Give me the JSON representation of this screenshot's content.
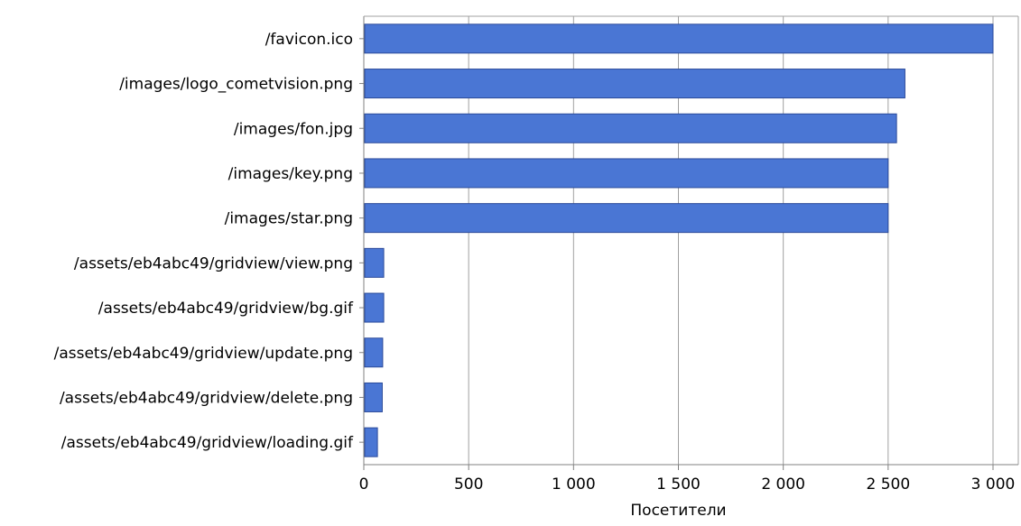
{
  "chart_data": {
    "type": "bar",
    "orientation": "horizontal",
    "categories": [
      "/favicon.ico",
      "/images/logo_cometvision.png",
      "/images/fon.jpg",
      "/images/key.png",
      "/images/star.png",
      "/assets/eb4abc49/gridview/view.png",
      "/assets/eb4abc49/gridview/bg.gif",
      "/assets/eb4abc49/gridview/update.png",
      "/assets/eb4abc49/gridview/delete.png",
      "/assets/eb4abc49/gridview/loading.gif"
    ],
    "values": [
      3000,
      2580,
      2540,
      2500,
      2500,
      95,
      95,
      90,
      88,
      65
    ],
    "xlabel": "Посетители",
    "ylabel": "",
    "xlim": [
      0,
      3000
    ],
    "xticks": [
      0,
      500,
      1000,
      1500,
      2000,
      2500,
      3000
    ],
    "xtick_labels": [
      "0",
      "500",
      "1 000",
      "1 500",
      "2 000",
      "2 500",
      "3 000"
    ],
    "grid": true,
    "legend": "none",
    "colors": {
      "bar_fill": "#4a76d4",
      "bar_stroke": "#2b4a9a",
      "grid": "#a0a0a0",
      "axis": "#808080"
    }
  }
}
